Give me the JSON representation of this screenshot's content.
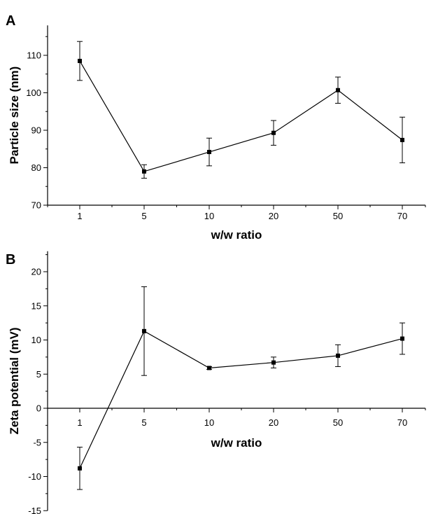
{
  "chart_data": [
    {
      "panel": "A",
      "type": "line",
      "categories": [
        "1",
        "5",
        "10",
        "20",
        "50",
        "70"
      ],
      "values": [
        108.5,
        79.0,
        84.2,
        89.3,
        100.7,
        87.4
      ],
      "errors": [
        5.2,
        1.8,
        3.7,
        3.3,
        3.5,
        6.1
      ],
      "xlabel": "w/w ratio",
      "ylabel": "Particle size (nm)",
      "ylim": [
        70,
        118
      ],
      "yticks": [
        70,
        80,
        90,
        100,
        110
      ],
      "grid": false,
      "marker": "square"
    },
    {
      "panel": "B",
      "type": "line",
      "categories": [
        "1",
        "5",
        "10",
        "20",
        "50",
        "70"
      ],
      "values": [
        -8.8,
        11.3,
        5.9,
        6.7,
        7.7,
        10.2
      ],
      "errors": [
        3.1,
        6.5,
        0.2,
        0.8,
        1.6,
        2.3
      ],
      "xlabel": "w/w ratio",
      "ylabel": "Zeta potential (mV)",
      "ylim": [
        -15,
        23
      ],
      "yticks": [
        -15,
        -10,
        -5,
        0,
        5,
        10,
        15,
        20
      ],
      "grid": false,
      "marker": "square"
    }
  ]
}
